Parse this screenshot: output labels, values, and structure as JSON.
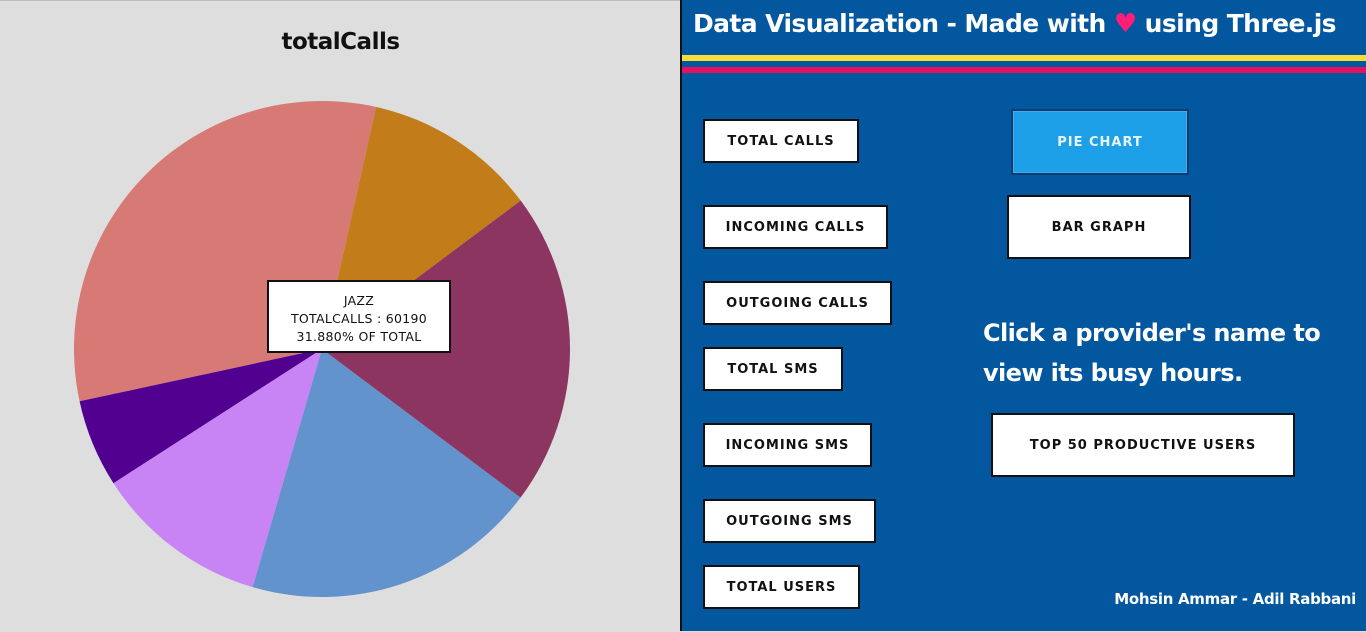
{
  "chart_panel": {
    "tooltip": {
      "provider": "JAZZ",
      "value_line": "TOTALCALLS : 60190",
      "percent_line": "31.880% OF TOTAL"
    }
  },
  "chart_data": {
    "type": "pie",
    "title": "totalCalls",
    "series": [
      {
        "value": 60190,
        "color": "#d77a75"
      },
      {
        "value": 10800,
        "color": "#52008f"
      },
      {
        "value": 21500,
        "color": "#c883f5"
      },
      {
        "value": 36400,
        "color": "#6393cd"
      },
      {
        "value": 38600,
        "color": "#8d3561"
      },
      {
        "value": 21300,
        "color": "#c27c1a"
      }
    ]
  },
  "header": {
    "title_before": "Data Visualization - Made with",
    "heart_icon": "♥",
    "title_after": "using Three.js"
  },
  "metric_buttons": [
    "Total Calls",
    "Incoming Calls",
    "Outgoing Calls",
    "Total SMS",
    "Incoming SMS",
    "Outgoing SMS",
    "Total Users"
  ],
  "view_buttons": {
    "pie": "Pie Chart",
    "bar": "Bar Graph"
  },
  "hint": "Click a provider's name to view its busy hours.",
  "top_users_button": "Top 50 Productive Users",
  "credits": "Mohsin Ammar - Adil Rabbani",
  "colors": {
    "panel_blue": "#03579e",
    "stripe_yellow": "#f6dc38",
    "stripe_pink": "#e8115f",
    "active_button": "#1ea0e8",
    "heart": "#ff1d78"
  }
}
